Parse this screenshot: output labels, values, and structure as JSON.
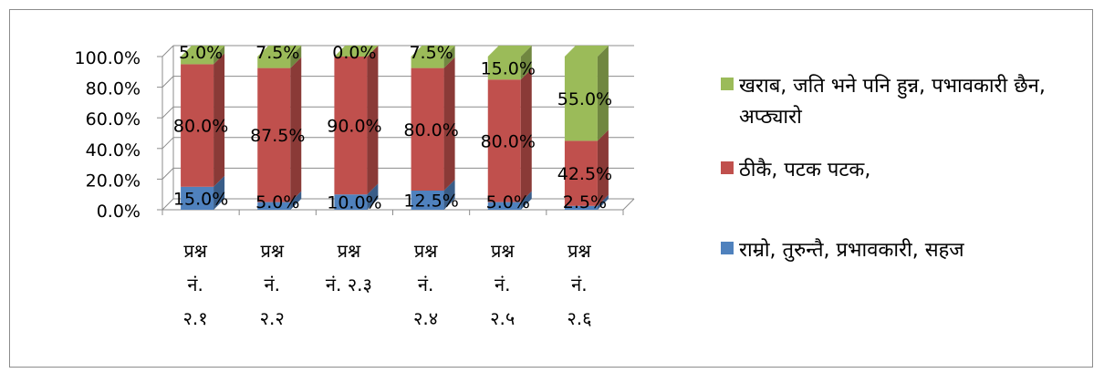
{
  "chart_data": {
    "type": "bar",
    "stacked": true,
    "percent_stacked": true,
    "three_d": true,
    "categories": [
      "प्रश्न नं. २.१",
      "प्रश्न नं. २.२",
      "प्रश्न नं. २.३",
      "प्रश्न नं. २.४",
      "प्रश्न नं. २.५",
      "प्रश्न नं. २.६"
    ],
    "category_lines": [
      [
        "प्रश्न",
        "नं.",
        "२.१"
      ],
      [
        "प्रश्न",
        "नं.",
        "२.२"
      ],
      [
        "प्रश्न",
        "नं. २.३"
      ],
      [
        "प्रश्न",
        "नं.",
        "२.४"
      ],
      [
        "प्रश्न",
        "नं.",
        "२.५"
      ],
      [
        "प्रश्न",
        "नं.",
        "२.६"
      ]
    ],
    "series": [
      {
        "name": "राम्रो, तुरुन्तै, प्रभावकारी, सहज",
        "color": "#4f81bd",
        "values": [
          15.0,
          5.0,
          10.0,
          12.5,
          5.0,
          2.5
        ],
        "labels": [
          "15.0%",
          "5.0%",
          "10.0%",
          "12.5%",
          "5.0%",
          "2.5%"
        ]
      },
      {
        "name": "ठीकै, पटक पटक,",
        "color": "#c0504d",
        "values": [
          80.0,
          87.5,
          90.0,
          80.0,
          80.0,
          42.5
        ],
        "labels": [
          "80.0%",
          "87.5%",
          "90.0%",
          "80.0%",
          "80.0%",
          "42.5%"
        ]
      },
      {
        "name": "खराब, जति भने पनि हुन्न, पभावकारी छैन, अप्ठ्यारो",
        "color": "#9bbb59",
        "values": [
          5.0,
          7.5,
          0.0,
          7.5,
          15.0,
          55.0
        ],
        "labels": [
          "5.0%",
          "7.5%",
          "0.0%",
          "7.5%",
          "15.0%",
          "55.0%"
        ]
      }
    ],
    "y_ticks": [
      "0.0%",
      "20.0%",
      "40.0%",
      "60.0%",
      "80.0%",
      "100.0%"
    ],
    "ylim": [
      0,
      100
    ],
    "grid": true,
    "legend_position": "right",
    "legend_order": [
      2,
      1,
      0
    ]
  }
}
